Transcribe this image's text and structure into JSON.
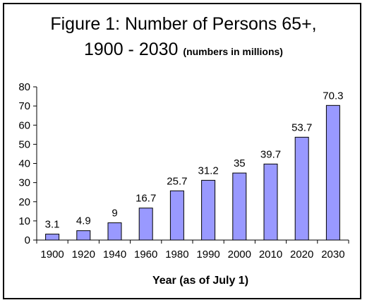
{
  "chart_data": {
    "type": "bar",
    "title": "Figure 1: Number of Persons 65+,",
    "title_line2": "1900 - 2030",
    "subtitle": "(numbers in millions)",
    "xlabel": "Year (as of July 1)",
    "ylabel": "",
    "categories": [
      "1900",
      "1920",
      "1940",
      "1960",
      "1980",
      "1990",
      "2000",
      "2010",
      "2020",
      "2030"
    ],
    "values": [
      3.1,
      4.9,
      9,
      16.7,
      25.7,
      31.2,
      35,
      39.7,
      53.7,
      70.3
    ],
    "ylim": [
      0,
      80
    ],
    "yticks": [
      0,
      10,
      20,
      30,
      40,
      50,
      60,
      70,
      80
    ],
    "grid": false,
    "bar_color": "#9999FF",
    "bar_edge_color": "#000000"
  }
}
